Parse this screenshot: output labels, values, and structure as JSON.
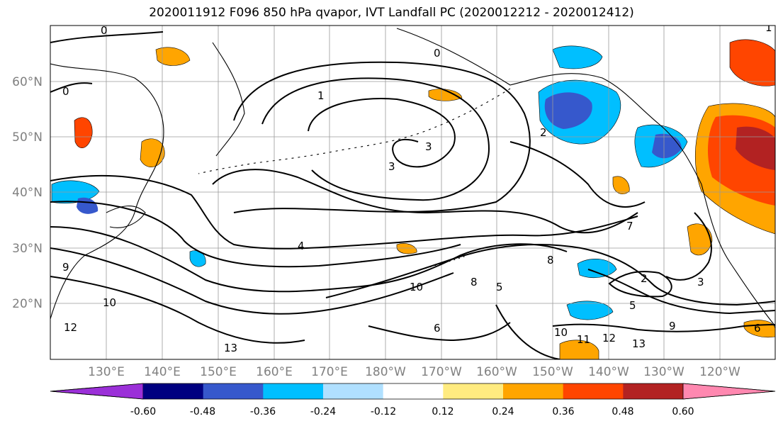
{
  "title": "2020011912 F096 850 hPa qvapor, IVT Landfall PC (2020012212 - 2020012412)",
  "lat_labels": [
    "60°N",
    "50°N",
    "40°N",
    "30°N",
    "20°N"
  ],
  "lon_labels": [
    "130°E",
    "140°E",
    "150°E",
    "160°E",
    "170°E",
    "180°W",
    "170°W",
    "160°W",
    "150°W",
    "140°W",
    "130°W",
    "120°W"
  ],
  "colorbar": {
    "colors": [
      "#9b30d8",
      "#000080",
      "#3658cc",
      "#00bfff",
      "#b0e0ff",
      "#ffffff",
      "#ffeb80",
      "#ffa500",
      "#ff4500",
      "#b22222",
      "#ff88b0"
    ],
    "tick_labels": [
      "-0.60",
      "-0.48",
      "-0.36",
      "-0.24",
      "-0.12",
      "0.12",
      "0.24",
      "0.36",
      "0.48",
      "0.60"
    ]
  },
  "contour_labels": [
    "0",
    "1",
    "0",
    "1",
    "2",
    "3",
    "3",
    "4",
    "7",
    "8",
    "3",
    "2",
    "5",
    "6",
    "9",
    "10",
    "11",
    "12",
    "13",
    "10",
    "8",
    "5",
    "12",
    "13",
    "0",
    "9",
    "10",
    "6"
  ]
}
